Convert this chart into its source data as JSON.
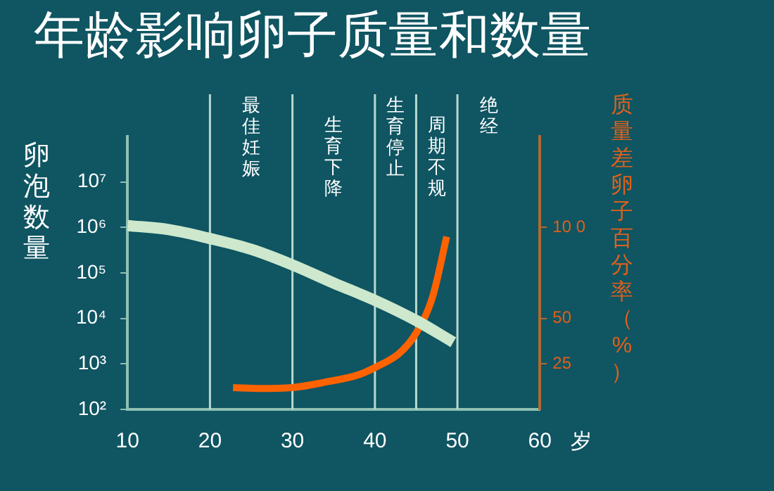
{
  "chart_data": {
    "type": "line",
    "title": "年龄影响卵子质量和数量",
    "xlabel": "岁",
    "ylabel": "卵泡数量",
    "y2label": "质量差卵子百分率（%）",
    "xlim": [
      10,
      60
    ],
    "xticks": [
      10,
      20,
      30,
      40,
      50,
      60
    ],
    "log": "y",
    "ylim": [
      100,
      100000000
    ],
    "yticks": [
      {
        "value": 100,
        "label": "10²"
      },
      {
        "value": 1000,
        "label": "10³"
      },
      {
        "value": 10000,
        "label": "10⁴"
      },
      {
        "value": 100000,
        "label": "10⁵"
      },
      {
        "value": 1000000,
        "label": "10⁶"
      },
      {
        "value": 10000000,
        "label": "10⁷"
      }
    ],
    "y2lim": [
      0,
      150
    ],
    "y2ticks": [
      25,
      50,
      {
        "value": 100,
        "label": "10 0"
      }
    ],
    "series": [
      {
        "color": "#cde8cc",
        "x": [
          10,
          15,
          20,
          25,
          30,
          35,
          40,
          45,
          49.5
        ],
        "values": [
          1100000,
          900000,
          570000,
          330000,
          150000,
          60000,
          25000,
          9000,
          3000
        ]
      },
      {
        "color": "#ff6200",
        "axis": "y2",
        "x": [
          22.8,
          26,
          30,
          34,
          38,
          40,
          43,
          45,
          47,
          48.7
        ],
        "values": [
          12,
          11.5,
          12,
          15,
          19,
          23,
          31,
          42,
          62,
          95
        ]
      }
    ],
    "ref_lines": [
      {
        "axis": "x",
        "value": 20,
        "label": "最佳妊娠",
        "color": "#b9d8cf"
      },
      {
        "axis": "x",
        "value": 30,
        "label": "生育下降",
        "color": "#b9d8cf"
      },
      {
        "axis": "x",
        "value": 40,
        "label": "生育停止",
        "color": "#b9d8cf"
      },
      {
        "axis": "x",
        "value": 45,
        "label": "周期不规",
        "color": "#b9d8cf"
      },
      {
        "axis": "x",
        "value": 50,
        "label": "绝经",
        "color": "#b9d8cf"
      }
    ],
    "grid": false,
    "legend": false,
    "line_style": "solid",
    "marker": "none"
  }
}
